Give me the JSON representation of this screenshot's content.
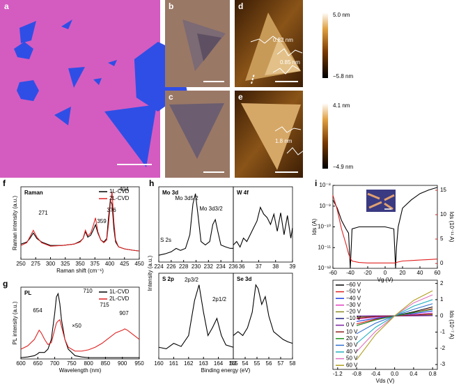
{
  "images": {
    "a": {
      "label": "a"
    },
    "b": {
      "label": "b"
    },
    "c": {
      "label": "c"
    },
    "d": {
      "label": "d",
      "colorbar": [
        "5.0 nm",
        "−5.8 nm"
      ],
      "annotations": [
        "0.82 nm",
        "0.85 nm"
      ]
    },
    "e": {
      "label": "e",
      "colorbar": [
        "4.1 nm",
        "−4.9 nm"
      ],
      "annotations": [
        "1.8 nm"
      ]
    }
  },
  "panel_labels": {
    "f": "f",
    "g": "g",
    "h": "h",
    "i": "i"
  },
  "h_axes": {
    "ylabel": "Intensity (a.u.)",
    "xlabel": "Binding energy (eV)"
  },
  "chart_data": [
    {
      "type": "line",
      "title": "Raman",
      "xlabel": "Raman shift (cm⁻¹)",
      "ylabel": "Raman intensity (a.u.)",
      "x": [
        250,
        260,
        265,
        271,
        277,
        285,
        300,
        320,
        340,
        350,
        355,
        359,
        363,
        368,
        372,
        376,
        380,
        385,
        390,
        395,
        398,
        401,
        404,
        407,
        410,
        415,
        425,
        440,
        450
      ],
      "series": [
        {
          "name": "1L-CVD",
          "color": "#000000",
          "values": [
            0.22,
            0.25,
            0.3,
            0.38,
            0.3,
            0.25,
            0.2,
            0.2,
            0.22,
            0.26,
            0.3,
            0.4,
            0.32,
            0.35,
            0.42,
            0.5,
            0.38,
            0.28,
            0.25,
            0.3,
            0.6,
            0.85,
            0.8,
            0.45,
            0.25,
            0.18,
            0.15,
            0.13,
            0.12
          ]
        },
        {
          "name": "2L-CVD",
          "color": "#e02020",
          "values": [
            0.2,
            0.24,
            0.32,
            0.42,
            0.32,
            0.24,
            0.19,
            0.2,
            0.22,
            0.25,
            0.3,
            0.42,
            0.34,
            0.38,
            0.48,
            0.6,
            0.4,
            0.28,
            0.24,
            0.28,
            0.5,
            0.8,
            0.98,
            0.55,
            0.28,
            0.18,
            0.15,
            0.13,
            0.12
          ]
        }
      ],
      "xlim": [
        250,
        450
      ],
      "ylim": [
        0,
        1.05
      ],
      "xticks": [
        250,
        275,
        300,
        325,
        350,
        375,
        400,
        425,
        450
      ],
      "yticks": [],
      "legend": "upper right",
      "annotations": [
        271,
        359,
        376,
        404
      ]
    },
    {
      "type": "line",
      "title": "PL",
      "xlabel": "Wavelength (nm)",
      "ylabel": "PL intensity (a.u.)",
      "x": [
        600,
        620,
        640,
        650,
        654,
        660,
        670,
        680,
        690,
        700,
        705,
        710,
        715,
        720,
        730,
        740,
        760,
        780,
        800,
        820,
        840,
        860,
        880,
        900,
        907,
        915,
        930,
        950
      ],
      "series": [
        {
          "name": "1L-CVD",
          "color": "#000000",
          "values": [
            0.02,
            0.03,
            0.05,
            0.08,
            0.1,
            0.1,
            0.1,
            0.15,
            0.3,
            0.7,
            0.95,
            1.0,
            0.85,
            0.6,
            0.3,
            0.15,
            0.05,
            0.03,
            0.02,
            0.02,
            0.02,
            0.02,
            0.02,
            0.02,
            0.02,
            0.02,
            0.02,
            0.02
          ]
        },
        {
          "name": "2L-CVD",
          "color": "#e02020",
          "values": [
            0.15,
            0.2,
            0.3,
            0.4,
            0.44,
            0.4,
            0.3,
            0.22,
            0.25,
            0.45,
            0.55,
            0.58,
            0.6,
            0.5,
            0.3,
            0.18,
            0.12,
            0.12,
            0.14,
            0.18,
            0.24,
            0.32,
            0.4,
            0.44,
            0.46,
            0.44,
            0.38,
            0.3
          ]
        }
      ],
      "xlim": [
        600,
        950
      ],
      "ylim": [
        0,
        1.1
      ],
      "xticks": [
        600,
        650,
        700,
        750,
        800,
        850,
        900,
        950
      ],
      "yticks": [],
      "legend": "upper right",
      "annotations": [
        654,
        710,
        715,
        "×50",
        907
      ]
    },
    {
      "type": "line",
      "title": "Mo 3d",
      "x": [
        224,
        225,
        226,
        226.8,
        227.5,
        228.3,
        229,
        229.5,
        229.9,
        230.3,
        230.8,
        231.5,
        232.2,
        232.7,
        233.1,
        233.5,
        234,
        234.8,
        235.5,
        236
      ],
      "series": [
        {
          "color": "#000000",
          "values": [
            0.1,
            0.12,
            0.15,
            0.2,
            0.17,
            0.2,
            0.4,
            0.85,
            1.0,
            0.7,
            0.3,
            0.25,
            0.3,
            0.55,
            0.62,
            0.45,
            0.25,
            0.22,
            0.2,
            0.2
          ]
        }
      ],
      "xlim": [
        224,
        236
      ],
      "ylim": [
        0,
        1.1
      ],
      "xticks": [
        224,
        226,
        228,
        230,
        232,
        234,
        236
      ],
      "yticks": [],
      "annotations": [
        "Mo 3d5/2",
        "Mo 3d3/2",
        "S 2s"
      ]
    },
    {
      "type": "line",
      "title": "W 4f",
      "x": [
        35.5,
        35.7,
        35.9,
        36.1,
        36.3,
        36.5,
        36.7,
        36.9,
        37.1,
        37.3,
        37.5,
        37.7,
        37.9,
        38.1,
        38.3,
        38.5,
        38.7,
        38.9,
        39
      ],
      "series": [
        {
          "color": "#000000",
          "values": [
            0.25,
            0.3,
            0.22,
            0.35,
            0.3,
            0.4,
            0.5,
            0.6,
            0.8,
            0.7,
            0.65,
            0.55,
            0.7,
            0.45,
            0.72,
            0.4,
            0.68,
            0.35,
            0.5
          ]
        }
      ],
      "xlim": [
        35.5,
        39
      ],
      "ylim": [
        0,
        1.1
      ],
      "xticks": [
        36,
        37,
        38,
        39
      ],
      "yticks": []
    },
    {
      "type": "line",
      "title": "S 2p",
      "x": [
        160,
        160.5,
        161,
        161.5,
        162,
        162.4,
        162.7,
        163,
        163.3,
        163.6,
        163.9,
        164.2,
        164.5,
        165
      ],
      "series": [
        {
          "color": "#000000",
          "values": [
            0.15,
            0.13,
            0.2,
            0.16,
            0.3,
            0.75,
            0.95,
            0.6,
            0.3,
            0.4,
            0.52,
            0.3,
            0.18,
            0.15
          ]
        }
      ],
      "xlim": [
        160,
        165
      ],
      "ylim": [
        0,
        1.1
      ],
      "xticks": [
        160,
        161,
        162,
        163,
        164,
        165
      ],
      "yticks": [],
      "annotations": [
        "2p3/2",
        "2p1/2"
      ]
    },
    {
      "type": "line",
      "title": "Se 3d",
      "x": [
        53,
        53.4,
        53.8,
        54.2,
        54.6,
        54.9,
        55.1,
        55.4,
        55.7,
        56,
        56.4,
        56.8,
        57.2,
        57.6,
        58
      ],
      "series": [
        {
          "color": "#000000",
          "values": [
            0.3,
            0.35,
            0.3,
            0.4,
            0.6,
            0.95,
            0.9,
            0.7,
            0.8,
            0.55,
            0.35,
            0.3,
            0.25,
            0.22,
            0.2
          ]
        }
      ],
      "xlim": [
        53,
        58
      ],
      "ylim": [
        0,
        1.1
      ],
      "xticks": [
        53,
        54,
        55,
        56,
        57,
        58
      ],
      "yticks": []
    },
    {
      "type": "line",
      "xlabel": "Vg (V)",
      "ylabel": "Ids (A)",
      "y2label": "Ids (10⁻¹¹ A)",
      "log_y": true,
      "x": [
        -60,
        -55,
        -50,
        -45,
        -42,
        -40,
        -38,
        -30,
        -20,
        -10,
        0,
        10,
        12,
        13,
        15,
        20,
        30,
        40,
        50,
        60
      ],
      "series": [
        {
          "color": "#000000",
          "values": [
            2e-09,
            8e-10,
            2e-10,
            8e-11,
            5e-11,
            1e-12,
            8e-11,
            1e-10,
            1e-10,
            1e-10,
            1e-10,
            8e-11,
            1e-12,
            1e-11,
            1e-10,
            8e-10,
            2e-09,
            4e-09,
            6e-09,
            8e-09
          ]
        },
        {
          "color": "#e02020",
          "axis": "y2",
          "values": [
            14,
            11,
            7,
            4,
            2,
            1,
            0.5,
            0.2,
            0.1,
            0.1,
            0.1,
            0.1,
            0.1,
            0.2,
            0.3,
            0.5,
            0.6,
            0.7,
            0.8,
            0.9
          ]
        }
      ],
      "xlim": [
        -60,
        60
      ],
      "ylim": [
        1e-12,
        1e-08
      ],
      "y2lim": [
        -1,
        16
      ],
      "xticks": [
        -60,
        -40,
        -20,
        0,
        20,
        40,
        60
      ],
      "yticks": [
        {
          "value": 1e-12,
          "label": "10⁻¹²"
        },
        {
          "value": 1e-11,
          "label": "10⁻¹¹"
        },
        {
          "value": 1e-10,
          "label": "10⁻¹⁰"
        },
        {
          "value": 1e-09,
          "label": "10⁻⁹"
        },
        {
          "value": 1e-08,
          "label": "10⁻⁸"
        }
      ],
      "y2ticks": [
        0,
        5,
        10,
        15
      ],
      "y2color": "#e02020"
    },
    {
      "type": "line",
      "xlabel": "Vds (V)",
      "ylabel": "Ids (10⁻⁷ A)",
      "y_axis_side": "right",
      "x": [
        -0.8,
        -0.4,
        0,
        0.4,
        0.8
      ],
      "series": [
        {
          "name": "−60 V",
          "color": "#000000",
          "values": [
            -0.6,
            -0.25,
            0,
            0.25,
            0.55
          ]
        },
        {
          "name": "−50 V",
          "color": "#e02020",
          "values": [
            -0.5,
            -0.2,
            0,
            0.2,
            0.45
          ]
        },
        {
          "name": "−40 V",
          "color": "#2040e0",
          "values": [
            -0.35,
            -0.15,
            0,
            0.14,
            0.3
          ]
        },
        {
          "name": "−30 V",
          "color": "#e040c0",
          "values": [
            -0.2,
            -0.08,
            0,
            0.08,
            0.18
          ]
        },
        {
          "name": "−20 V",
          "color": "#8a8a20",
          "values": [
            -0.08,
            -0.03,
            0,
            0.03,
            0.07
          ]
        },
        {
          "name": "−10 V",
          "color": "#202080",
          "values": [
            -0.02,
            -0.01,
            0,
            0.01,
            0.02
          ]
        },
        {
          "name": "0 V",
          "color": "#7a20a0",
          "values": [
            -0.01,
            0,
            0,
            0,
            0.01
          ]
        },
        {
          "name": "10 V",
          "color": "#902020",
          "values": [
            -0.15,
            -0.05,
            0,
            0.05,
            0.12
          ]
        },
        {
          "name": "20 V",
          "color": "#209020",
          "values": [
            -0.6,
            -0.25,
            0,
            0.2,
            0.4
          ]
        },
        {
          "name": "30 V",
          "color": "#3070d0",
          "values": [
            -1.1,
            -0.45,
            0,
            0.4,
            0.75
          ]
        },
        {
          "name": "40 V",
          "color": "#20b0c0",
          "values": [
            -1.7,
            -0.7,
            0,
            0.6,
            1.0
          ]
        },
        {
          "name": "50 V",
          "color": "#e070c0",
          "values": [
            -2.2,
            -0.95,
            0,
            0.8,
            1.3
          ]
        },
        {
          "name": "60 V",
          "color": "#b0a020",
          "values": [
            -2.7,
            -1.15,
            0,
            0.95,
            1.55
          ]
        }
      ],
      "xlim": [
        -1.3,
        0.9
      ],
      "ylim": [
        -3.3,
        2.2
      ],
      "xticks": [
        -1.2,
        -0.8,
        -0.4,
        {
          "value": 0,
          "label": "0.0"
        },
        0.4,
        0.8
      ],
      "yticks": [
        -3,
        -2,
        -1,
        0,
        1,
        2
      ],
      "legend": "upper left"
    }
  ]
}
